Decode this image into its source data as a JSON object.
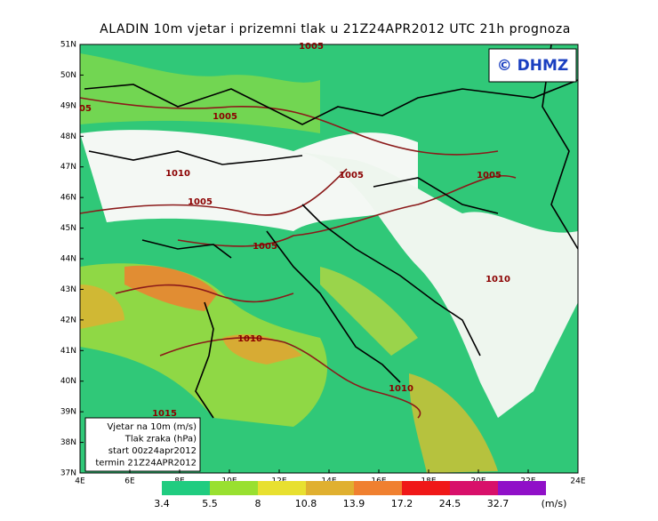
{
  "title": "ALADIN 10m vjetar i prizemni tlak u 21Z24APR2012 UTC 21h prognoza",
  "logo": "© DHMZ",
  "lat_labels": [
    "51N",
    "50N",
    "49N",
    "48N",
    "47N",
    "46N",
    "45N",
    "44N",
    "43N",
    "42N",
    "41N",
    "40N",
    "39N",
    "38N",
    "37N"
  ],
  "lon_labels": [
    "4E",
    "6E",
    "8E",
    "10E",
    "12E",
    "14E",
    "16E",
    "18E",
    "20E",
    "22E",
    "24E"
  ],
  "isobars": [
    "1005",
    "05",
    "1005",
    "1010",
    "1005",
    "1005",
    "1005",
    "1005",
    "1010",
    "1010",
    "1010",
    "1015"
  ],
  "legend_box": [
    "Vjetar na 10m (m/s)",
    "Tlak zraka (hPa)",
    "start 00z24apr2012",
    "termin 21Z24APR2012"
  ],
  "colorbar": {
    "labels": [
      "3.4",
      "5.5",
      "8",
      "10.8",
      "13.9",
      "17.2",
      "24.5",
      "32.7"
    ],
    "unit": "(m/s)",
    "colors": [
      "#20cc80",
      "#99e030",
      "#e8e030",
      "#e0b030",
      "#f08030",
      "#f01818",
      "#d8106a",
      "#9010c8"
    ]
  }
}
